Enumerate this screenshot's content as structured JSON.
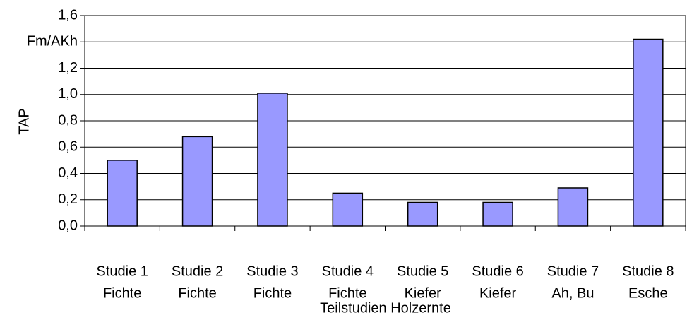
{
  "chart_data": {
    "type": "bar",
    "y_label": "TAP",
    "x_label": "Teilstudien Holzernte",
    "categories": [
      [
        "Studie 1",
        "Fichte"
      ],
      [
        "Studie 2",
        "Fichte"
      ],
      [
        "Studie 3",
        "Fichte"
      ],
      [
        "Studie 4",
        "Fichte"
      ],
      [
        "Studie 5",
        "Kiefer"
      ],
      [
        "Studie 6",
        "Kiefer"
      ],
      [
        "Studie 7",
        "Ah, Bu"
      ],
      [
        "Studie 8",
        "Esche"
      ]
    ],
    "values": [
      0.5,
      0.68,
      1.01,
      0.25,
      0.18,
      0.18,
      0.29,
      1.42
    ],
    "color": "#9999ff",
    "ylim": [
      0,
      1.6
    ],
    "yticks": [
      {
        "value": 0,
        "label": "0,0"
      },
      {
        "value": 0.2,
        "label": "0,2"
      },
      {
        "value": 0.4,
        "label": "0,4"
      },
      {
        "value": 0.6,
        "label": "0,6"
      },
      {
        "value": 0.8,
        "label": "0,8"
      },
      {
        "value": 1.0,
        "label": "1,0"
      },
      {
        "value": 1.2,
        "label": "1,2"
      },
      {
        "value": 1.4,
        "label": "Fm/AKh"
      },
      {
        "value": 1.6,
        "label": "1,6"
      }
    ],
    "grid": true
  }
}
